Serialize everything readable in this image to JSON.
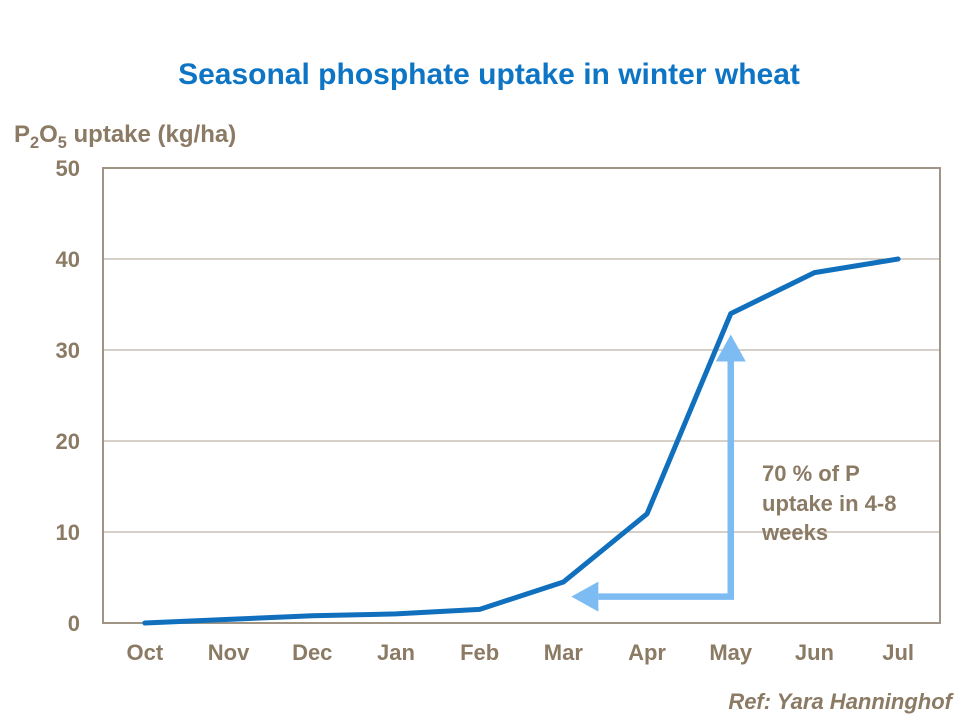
{
  "title": {
    "text": "Seasonal phosphate uptake in winter wheat"
  },
  "y_axis_title": {
    "p": "P",
    "sub2": "2",
    "o": "O",
    "sub5": "5",
    "rest": " uptake (kg/ha)"
  },
  "annotation": {
    "text": "70 % of P\nuptake in 4-8\nweeks"
  },
  "reference": {
    "text": "Ref: Yara Hanninghof"
  },
  "colors": {
    "title_blue": "#0e74c4",
    "curve_blue": "#1070bd",
    "arrow_blue": "#7dbcf2",
    "brown": "#8b7a64",
    "grid": "#aca190",
    "border": "#a09585"
  },
  "chart_data": {
    "type": "line",
    "title": "Seasonal phosphate uptake in winter wheat",
    "xlabel": "",
    "ylabel": "P2O5 uptake (kg/ha)",
    "categories": [
      "Oct",
      "Nov",
      "Dec",
      "Jan",
      "Feb",
      "Mar",
      "Apr",
      "May",
      "Jun",
      "Jul"
    ],
    "values": [
      0,
      0.4,
      0.8,
      1,
      1.5,
      4.5,
      12,
      34,
      38.5,
      40
    ],
    "ylim": [
      0,
      50
    ],
    "yticks": [
      0,
      10,
      20,
      30,
      40,
      50
    ],
    "grid": "horizontal",
    "legend": "none",
    "annotation": {
      "text": "70 % of P\nuptake in 4-8\nweeks",
      "arrow": {
        "vertical_month": "May",
        "vertical_from_value": 2.9,
        "vertical_to_value": 31.7,
        "horizontal_value": 2.9,
        "horizontal_to_month": "Mar"
      }
    }
  }
}
